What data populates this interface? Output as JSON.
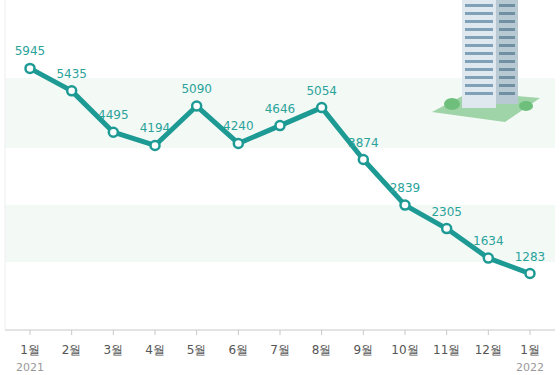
{
  "chart_data": {
    "type": "line",
    "categories": [
      "1월",
      "2월",
      "3월",
      "4월",
      "5월",
      "6월",
      "7월",
      "8월",
      "9월",
      "10월",
      "11월",
      "12월",
      "1월"
    ],
    "values": [
      5945,
      5435,
      4495,
      4194,
      5090,
      4240,
      4646,
      5054,
      3874,
      2839,
      2305,
      1634,
      1283
    ],
    "color": "#1e9a94",
    "ylim": [
      0,
      7500
    ],
    "data_labels": true,
    "tick_labels": "x",
    "grid": false,
    "marker": "circle",
    "annotations": [
      "2021",
      "2022"
    ]
  }
}
